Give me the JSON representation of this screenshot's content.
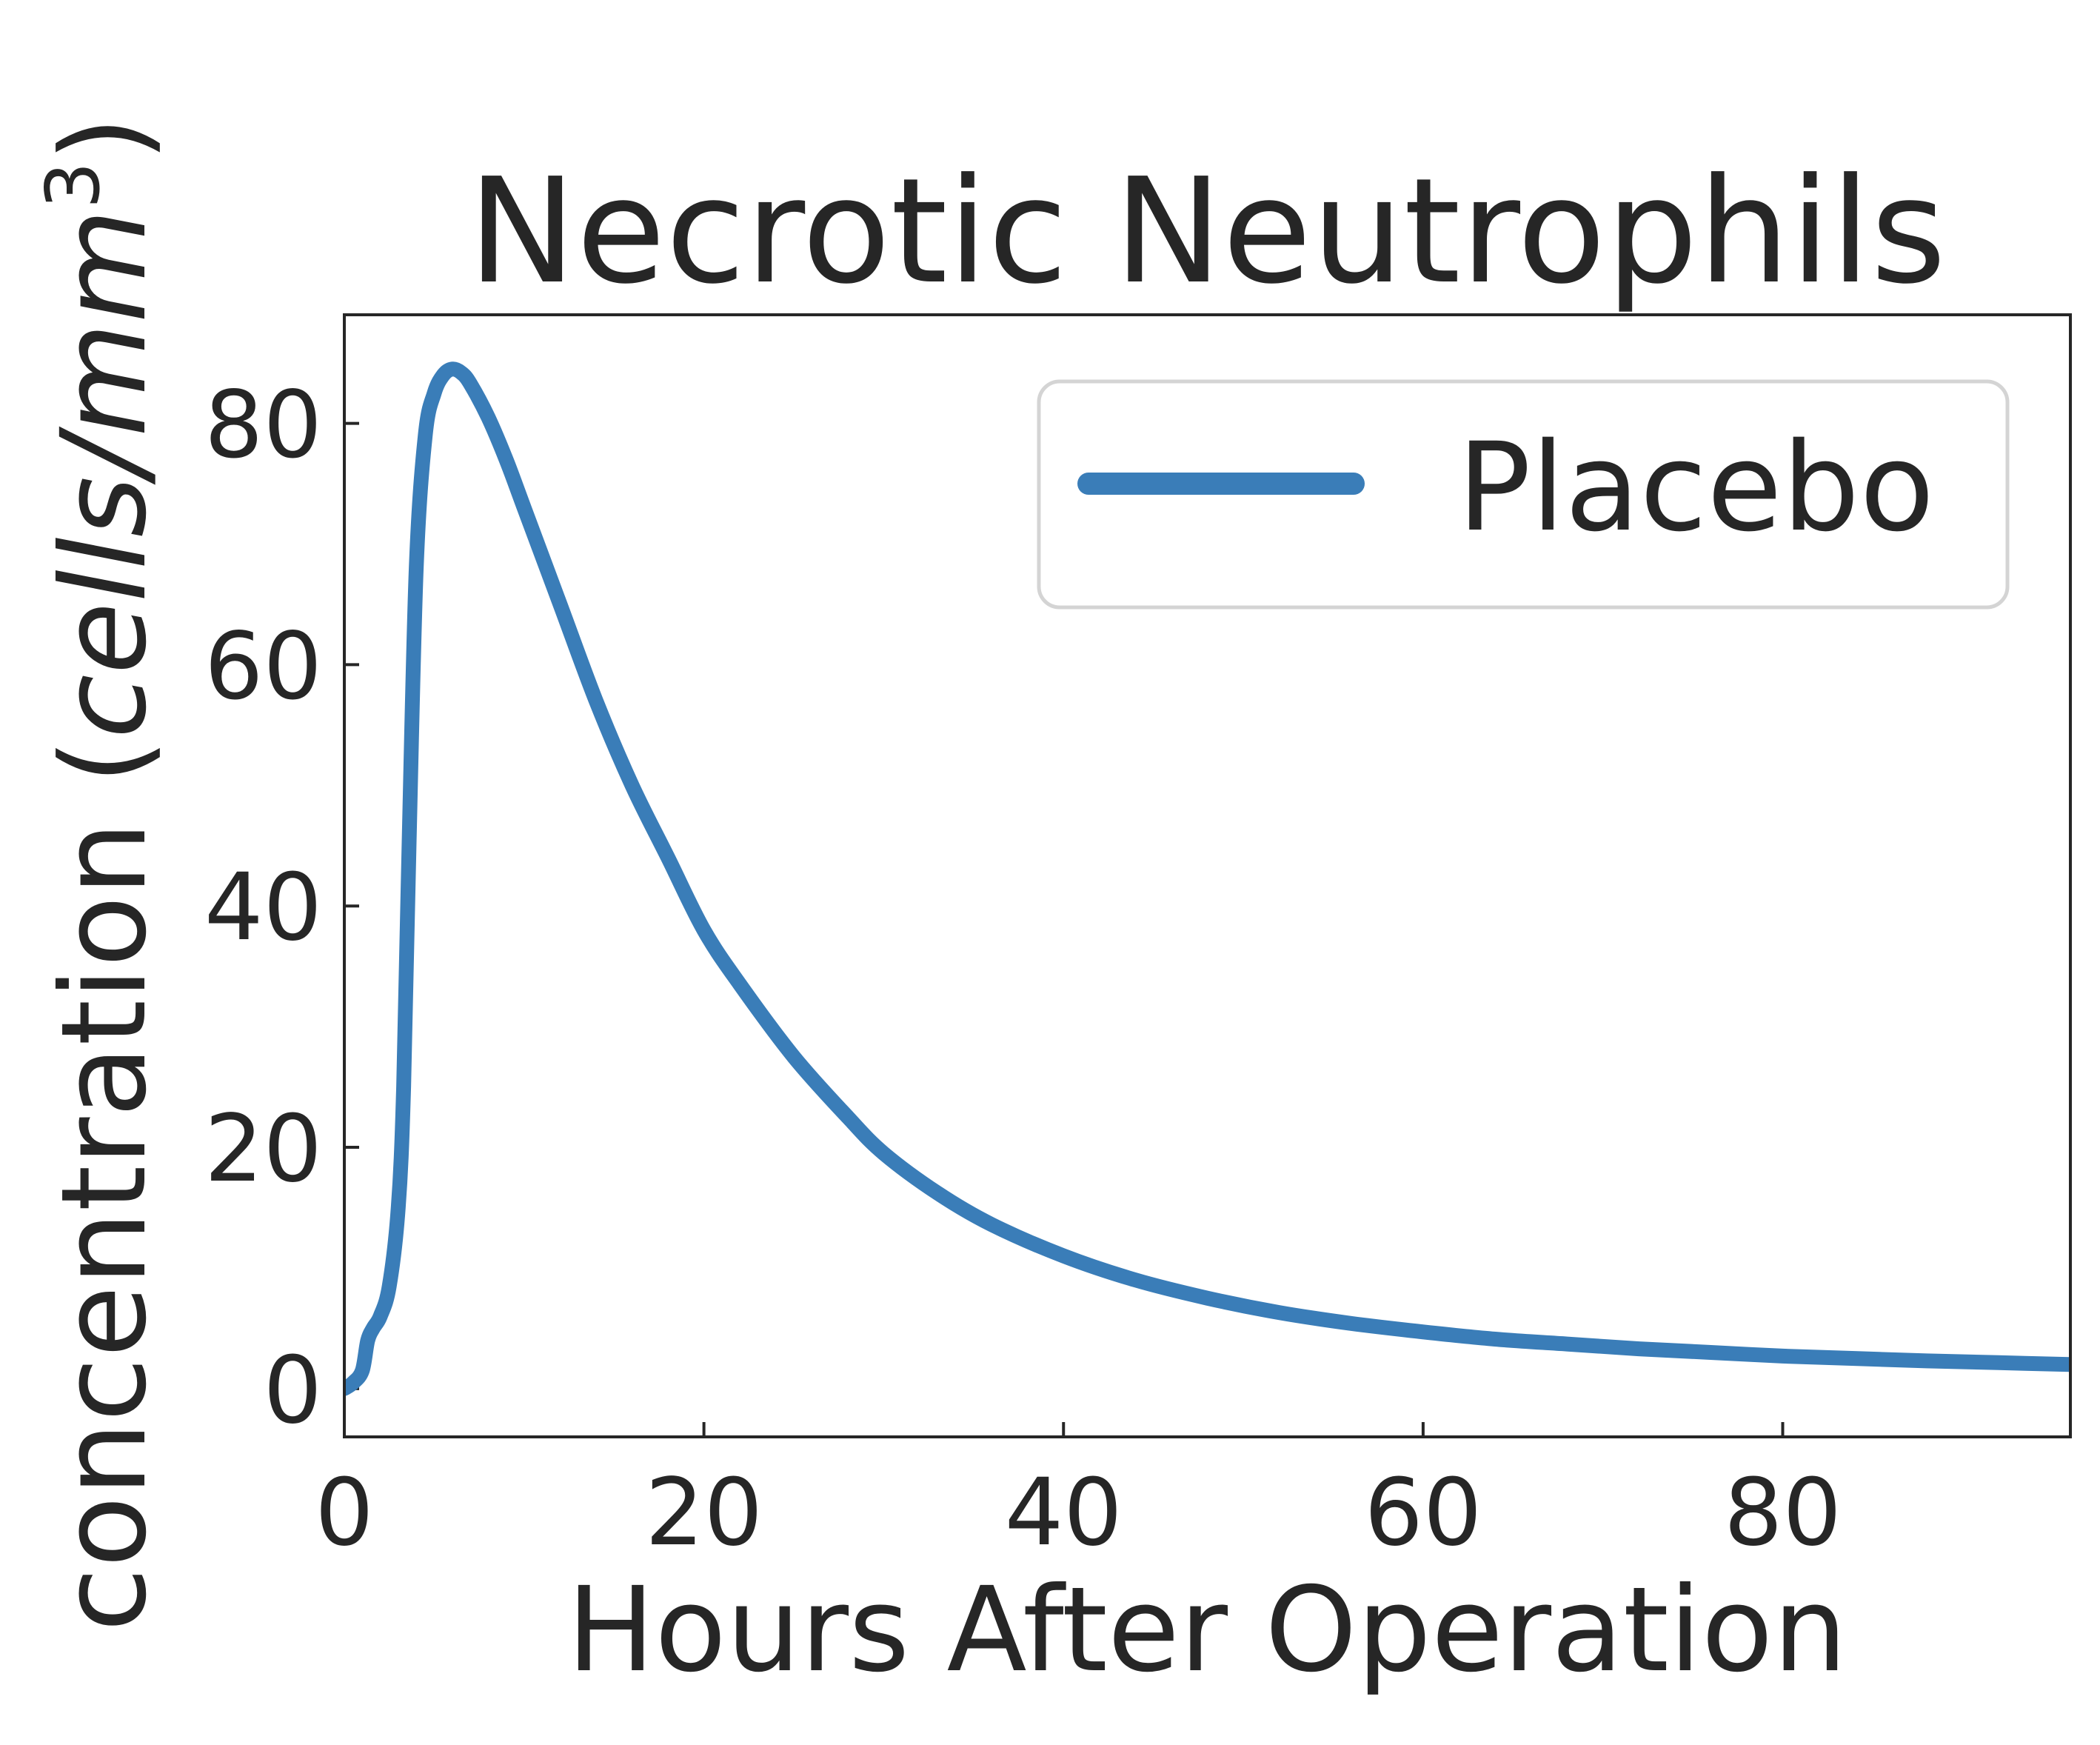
{
  "chart_data": {
    "type": "line",
    "title": "Necrotic Neutrophils",
    "xlabel": "Hours After Operation",
    "ylabel_text": "concentration (",
    "ylabel_unit": "cells/mm",
    "ylabel_exp": "3",
    "ylabel_close": ")",
    "xlim": [
      0,
      96
    ],
    "ylim": [
      -4,
      89
    ],
    "xticks": [
      0,
      20,
      40,
      60,
      80
    ],
    "yticks": [
      0,
      20,
      40,
      60,
      80
    ],
    "grid": false,
    "legend": {
      "position": "top-right"
    },
    "series": [
      {
        "name": "Placebo",
        "color": "#3a7db8",
        "x": [
          0,
          0.5,
          1,
          1.3,
          1.6,
          2,
          2.5,
          3,
          3.3,
          3.6,
          4,
          4.5,
          5,
          5.5,
          6,
          6.5,
          7,
          8,
          9,
          10,
          12,
          14,
          16,
          18,
          20,
          22,
          25,
          28,
          30,
          33,
          36,
          40,
          44,
          48,
          52,
          56,
          60,
          64,
          68,
          72,
          76,
          80,
          84,
          88,
          92,
          96
        ],
        "y": [
          0,
          0.5,
          1.5,
          4,
          5,
          6,
          8.5,
          15,
          25,
          45,
          68,
          79,
          82.5,
          84,
          84.5,
          84.2,
          83.3,
          80.5,
          77,
          73,
          65,
          57,
          50,
          44,
          38,
          33.5,
          27.5,
          22.5,
          19.5,
          16.2,
          13.6,
          11,
          9,
          7.5,
          6.3,
          5.4,
          4.7,
          4.1,
          3.7,
          3.3,
          3,
          2.7,
          2.5,
          2.3,
          2.15,
          2
        ]
      }
    ]
  }
}
